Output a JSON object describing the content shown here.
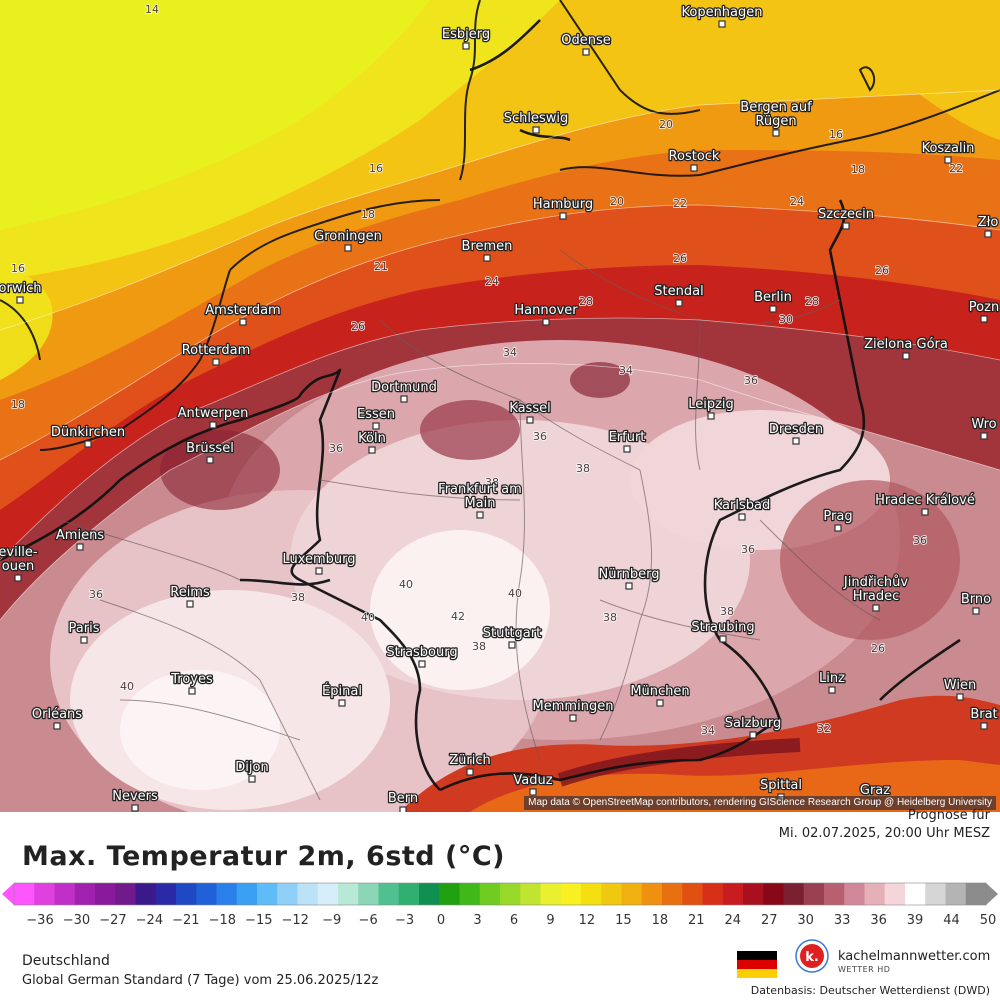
{
  "map": {
    "attribution": "Map data © OpenStreetMap contributors, rendering GIScience Research Group @ Heidelberg University",
    "cities": [
      {
        "name": "Kopenhagen"
      },
      {
        "name": "Esbjerg"
      },
      {
        "name": "Odense"
      },
      {
        "name": "Schleswig"
      },
      {
        "name": "Bergen auf Rügen"
      },
      {
        "name": "Rostock"
      },
      {
        "name": "Koszalin"
      },
      {
        "name": "Hamburg"
      },
      {
        "name": "Szczecin"
      },
      {
        "name": "Groningen"
      },
      {
        "name": "Bremen"
      },
      {
        "name": "Stendal"
      },
      {
        "name": "Berlin"
      },
      {
        "name": "Amsterdam"
      },
      {
        "name": "Hannover"
      },
      {
        "name": "Rotterdam"
      },
      {
        "name": "Zielona Góra"
      },
      {
        "name": "Dortmund"
      },
      {
        "name": "Antwerpen"
      },
      {
        "name": "Essen"
      },
      {
        "name": "Kassel"
      },
      {
        "name": "Leipzig"
      },
      {
        "name": "Dünkirchen"
      },
      {
        "name": "Köln"
      },
      {
        "name": "Dresden"
      },
      {
        "name": "Brüssel"
      },
      {
        "name": "Erfurt"
      },
      {
        "name": "Frankfurt am Main"
      },
      {
        "name": "Karlsbad"
      },
      {
        "name": "Hradec Králové"
      },
      {
        "name": "Prag"
      },
      {
        "name": "Amiens"
      },
      {
        "name": "Luxemburg"
      },
      {
        "name": "Nürnberg"
      },
      {
        "name": "Reims"
      },
      {
        "name": "Jindřichův Hradec"
      },
      {
        "name": "Brno"
      },
      {
        "name": "Paris"
      },
      {
        "name": "Stuttgart"
      },
      {
        "name": "Straubing"
      },
      {
        "name": "Strasbourg"
      },
      {
        "name": "Troyes"
      },
      {
        "name": "Épinal"
      },
      {
        "name": "München"
      },
      {
        "name": "Linz"
      },
      {
        "name": "Wien"
      },
      {
        "name": "Orléans"
      },
      {
        "name": "Memmingen"
      },
      {
        "name": "Salzburg"
      },
      {
        "name": "Dijon"
      },
      {
        "name": "Zürich"
      },
      {
        "name": "Vaduz"
      },
      {
        "name": "Nevers"
      },
      {
        "name": "Bern"
      },
      {
        "name": "Spittal"
      },
      {
        "name": "Graz"
      },
      {
        "name": "orwich"
      },
      {
        "name": "Zło"
      },
      {
        "name": "Pozn"
      },
      {
        "name": "Wro"
      },
      {
        "name": "eville-\nouen"
      },
      {
        "name": "Brat"
      }
    ],
    "isotherm_labels": [
      "14",
      "16",
      "16",
      "16",
      "18",
      "18",
      "18",
      "20",
      "20",
      "21",
      "22",
      "22",
      "24",
      "24",
      "26",
      "26",
      "26",
      "28",
      "28",
      "30",
      "34",
      "34",
      "36",
      "36",
      "36",
      "36",
      "36",
      "36",
      "38",
      "38",
      "38",
      "38",
      "38",
      "38",
      "40",
      "40",
      "40",
      "40",
      "42",
      "34",
      "32",
      "26"
    ]
  },
  "header": {
    "title": "Max. Temperatur 2m, 6std (°C)",
    "forecast_label": "Prognose für",
    "forecast_time": "Mi. 02.07.2025, 20:00 Uhr MESZ"
  },
  "colorbar": {
    "unit": "°C",
    "ticks": [
      "-36",
      "-30",
      "-27",
      "-24",
      "-21",
      "-18",
      "-15",
      "-12",
      "-9",
      "-6",
      "-3",
      "0",
      "3",
      "6",
      "9",
      "12",
      "15",
      "18",
      "21",
      "24",
      "27",
      "30",
      "33",
      "36",
      "39",
      "44",
      "50"
    ],
    "colors": [
      "#ff55ff",
      "#e040e0",
      "#c030c8",
      "#a020b0",
      "#8a1a9c",
      "#701a8c",
      "#3a1a8a",
      "#2a2aa8",
      "#1e48c4",
      "#2060d8",
      "#2a80ea",
      "#3aa0f2",
      "#60bcf6",
      "#90d0f8",
      "#bce2f8",
      "#d6eefa",
      "#b8e8d6",
      "#8cd6b8",
      "#50c090",
      "#30b070",
      "#109050",
      "#20a010",
      "#40b81a",
      "#70cc20",
      "#98d828",
      "#c0e430",
      "#e8f030",
      "#f8f020",
      "#f4e010",
      "#f0c810",
      "#f0b010",
      "#f09010",
      "#e87010",
      "#e05010",
      "#d83018",
      "#c81c20",
      "#a81020",
      "#880818",
      "#7a2030",
      "#9a4050",
      "#b86070",
      "#d08898",
      "#e6b0b8",
      "#f4d6da",
      "#ffffff",
      "#d6d6d6",
      "#b4b4b4",
      "#8c8c8c"
    ]
  },
  "footer": {
    "region": "Deutschland",
    "model_run": "Global German Standard (7 Tage) vom 25.06.2025/12z",
    "brand_name": "kachelmannwetter.com",
    "brand_sub": "WETTER HD",
    "logo_letter": "k.",
    "data_source": "Datenbasis: Deutscher Wetterdienst (DWD)",
    "flag_colors": [
      "#000000",
      "#dd0000",
      "#ffce00"
    ]
  }
}
